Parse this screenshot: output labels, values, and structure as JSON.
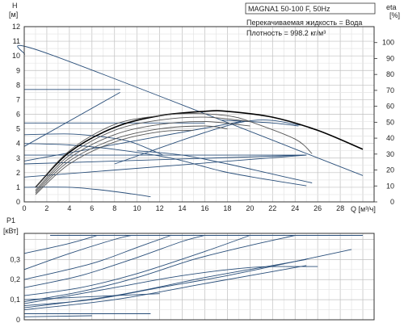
{
  "chart_data": [
    {
      "type": "line",
      "title": "MAGNA1 50-100 F, 50Hz",
      "info_lines": [
        "Перекачиваемая жидкость = Вода",
        "Плотность = 998.2 кг/м³"
      ],
      "ylabel_name": "H",
      "ylabel_unit": "[м]",
      "y2label": "eta",
      "y2unit": "[%]",
      "xlabel": "Q [м³/ч]",
      "xlim": [
        0,
        31
      ],
      "ylim": [
        0,
        12
      ],
      "y2lim": [
        0,
        110
      ],
      "x_ticks": [
        "0",
        "2",
        "4",
        "6",
        "8",
        "10",
        "12",
        "14",
        "16",
        "18",
        "20",
        "22",
        "24",
        "26",
        "28"
      ],
      "y_ticks": [
        "0",
        "1",
        "2",
        "3",
        "4",
        "5",
        "6",
        "7",
        "8",
        "9",
        "10",
        "11",
        "12"
      ],
      "y2_ticks": [
        "0",
        "10",
        "20",
        "30",
        "40",
        "50",
        "60",
        "70",
        "80",
        "90",
        "100"
      ],
      "grid": true,
      "curves": [
        {
          "color": "#2a4f7a",
          "points": [
            [
              0,
              10.1
            ],
            [
              2.3,
              10.1
            ],
            [
              30,
              1.8
            ]
          ]
        },
        {
          "color": "#2a4f7a",
          "points": [
            [
              0,
              7.7
            ],
            [
              8.5,
              7.7
            ]
          ]
        },
        {
          "color": "#2a4f7a",
          "points": [
            [
              0,
              5.4
            ],
            [
              16,
              5.4
            ]
          ]
        },
        {
          "color": "#2a4f7a",
          "points": [
            [
              0,
              4.6
            ],
            [
              4,
              4.65
            ],
            [
              7,
              4.45
            ],
            [
              9.5,
              4.1
            ],
            [
              12.3,
              3.2
            ]
          ]
        },
        {
          "color": "#2a4f7a",
          "points": [
            [
              0,
              3.2
            ],
            [
              25,
              3.2
            ]
          ]
        },
        {
          "color": "#2a4f7a",
          "points": [
            [
              0,
              2.6
            ],
            [
              25,
              3.2
            ]
          ]
        },
        {
          "color": "#2a4f7a",
          "points": [
            [
              0,
              1.7
            ],
            [
              25,
              3.2
            ]
          ]
        },
        {
          "color": "#2a4f7a",
          "points": [
            [
              0,
              3.8
            ],
            [
              8.5,
              7.5
            ]
          ]
        },
        {
          "color": "#2a4f7a",
          "points": [
            [
              0,
              2.8
            ],
            [
              19.2,
              5.5
            ]
          ]
        },
        {
          "color": "#2a4f7a",
          "points": [
            [
              0,
              1.0
            ],
            [
              4,
              1.0
            ],
            [
              7,
              0.8
            ],
            [
              9.5,
              0.55
            ],
            [
              11.2,
              0.35
            ]
          ]
        },
        {
          "color": "#2a4f7a",
          "points": [
            [
              0,
              4.0
            ],
            [
              4,
              3.9
            ],
            [
              8,
              3.6
            ],
            [
              13,
              3.0
            ],
            [
              17.5,
              2.1
            ],
            [
              21,
              1.6
            ],
            [
              25,
              1.1
            ]
          ]
        },
        {
          "color": "#2a4f7a",
          "points": [
            [
              10,
              3.5
            ],
            [
              14,
              3.2
            ],
            [
              18,
              2.6
            ],
            [
              22,
              1.9
            ],
            [
              25.5,
              1.3
            ]
          ]
        },
        {
          "color": "#2a4f7a",
          "points": [
            [
              17.5,
              5.6
            ],
            [
              22,
              5.4
            ],
            [
              24.3,
              5.2
            ]
          ]
        },
        {
          "color": "#2a4f7a",
          "points": [
            [
              8,
              2.6
            ],
            [
              19.2,
              5.45
            ],
            [
              24.5,
              5.25
            ]
          ]
        },
        {
          "color": "#000000",
          "points": [
            [
              1,
              1.0
            ],
            [
              4,
              3.4
            ],
            [
              8,
              5.1
            ],
            [
              12,
              5.9
            ],
            [
              16,
              6.2
            ],
            [
              18,
              6.2
            ],
            [
              22,
              5.8
            ],
            [
              26,
              4.9
            ],
            [
              30,
              3.6
            ]
          ]
        },
        {
          "color": "#555555",
          "points": [
            [
              1,
              1.0
            ],
            [
              4,
              3.5
            ],
            [
              8,
              5.3
            ],
            [
              12,
              5.9
            ],
            [
              15,
              6.05
            ],
            [
              18,
              5.9
            ],
            [
              20,
              5.5
            ],
            [
              24,
              4.3
            ],
            [
              25.5,
              3.3
            ]
          ]
        },
        {
          "color": "#555555",
          "points": [
            [
              1,
              0.8
            ],
            [
              4,
              3.2
            ],
            [
              8,
              4.9
            ],
            [
              12,
              5.6
            ],
            [
              16,
              5.8
            ],
            [
              20,
              5.5
            ]
          ]
        },
        {
          "color": "#555555",
          "points": [
            [
              1,
              0.7
            ],
            [
              4,
              3.0
            ],
            [
              8,
              4.6
            ],
            [
              12,
              5.3
            ],
            [
              16,
              5.5
            ],
            [
              20,
              5.2
            ]
          ]
        },
        {
          "color": "#555555",
          "points": [
            [
              1,
              0.6
            ],
            [
              4,
              2.8
            ],
            [
              8,
              4.3
            ],
            [
              12,
              5.0
            ],
            [
              16,
              5.2
            ],
            [
              18,
              5.0
            ]
          ]
        },
        {
          "color": "#555555",
          "points": [
            [
              1,
              0.5
            ],
            [
              4,
              2.6
            ],
            [
              8,
              4.1
            ],
            [
              12,
              4.8
            ],
            [
              15,
              4.9
            ]
          ]
        }
      ]
    },
    {
      "type": "line",
      "ylabel_name": "P1",
      "ylabel_unit": "[кВт]",
      "xlim": [
        0,
        31
      ],
      "ylim": [
        0,
        0.43
      ],
      "y_ticks": [
        "0",
        "0,1",
        "0,2",
        "0,3"
      ],
      "grid": true,
      "curves": [
        {
          "color": "#2a4f7a",
          "points": [
            [
              2.3,
              0.42
            ],
            [
              30,
              0.42
            ]
          ]
        },
        {
          "color": "#2a4f7a",
          "points": [
            [
              0,
              0.25
            ],
            [
              4,
              0.33
            ],
            [
              8,
              0.4
            ],
            [
              9.5,
              0.42
            ]
          ]
        },
        {
          "color": "#2a4f7a",
          "points": [
            [
              0,
              0.33
            ],
            [
              4,
              0.38
            ],
            [
              6.5,
              0.42
            ]
          ]
        },
        {
          "color": "#2a4f7a",
          "points": [
            [
              0,
              0.09
            ],
            [
              5,
              0.14
            ],
            [
              10,
              0.21
            ],
            [
              15,
              0.3
            ],
            [
              20,
              0.37
            ],
            [
              24,
              0.42
            ]
          ]
        },
        {
          "color": "#2a4f7a",
          "points": [
            [
              0,
              0.12
            ],
            [
              5,
              0.16
            ],
            [
              10,
              0.23
            ],
            [
              16,
              0.34
            ],
            [
              20,
              0.42
            ]
          ]
        },
        {
          "color": "#2a4f7a",
          "points": [
            [
              0,
              0.16
            ],
            [
              5,
              0.22
            ],
            [
              10,
              0.31
            ],
            [
              14,
              0.39
            ],
            [
              16,
              0.42
            ]
          ]
        },
        {
          "color": "#2a4f7a",
          "points": [
            [
              0,
              0.2
            ],
            [
              6,
              0.28
            ],
            [
              10,
              0.36
            ],
            [
              13,
              0.42
            ]
          ]
        },
        {
          "color": "#2a4f7a",
          "points": [
            [
              0,
              0.07
            ],
            [
              6,
              0.1
            ],
            [
              12,
              0.16
            ],
            [
              18,
              0.22
            ],
            [
              24,
              0.29
            ],
            [
              29,
              0.35
            ]
          ]
        },
        {
          "color": "#2a4f7a",
          "points": [
            [
              0,
              0.06
            ],
            [
              8,
              0.12
            ],
            [
              16,
              0.21
            ],
            [
              22,
              0.27
            ],
            [
              25,
              0.3
            ]
          ]
        },
        {
          "color": "#2a4f7a",
          "points": [
            [
              0,
              0.05
            ],
            [
              8,
              0.1
            ],
            [
              16,
              0.18
            ],
            [
              22,
              0.24
            ],
            [
              25,
              0.27
            ]
          ]
        },
        {
          "color": "#2a4f7a",
          "points": [
            [
              0,
              0.08
            ],
            [
              8,
              0.16
            ],
            [
              14,
              0.22
            ],
            [
              20,
              0.26
            ],
            [
              24,
              0.265
            ],
            [
              26,
              0.265
            ]
          ]
        },
        {
          "color": "#2a4f7a",
          "points": [
            [
              0,
              0.1
            ],
            [
              4,
              0.11
            ],
            [
              8,
              0.12
            ],
            [
              12,
              0.13
            ]
          ]
        },
        {
          "color": "#2a4f7a",
          "points": [
            [
              0,
              0.03
            ],
            [
              11.2,
              0.03
            ]
          ]
        },
        {
          "color": "#2a4f7a",
          "points": [
            [
              0,
              0.015
            ],
            [
              6,
              0.02
            ]
          ]
        }
      ]
    }
  ]
}
